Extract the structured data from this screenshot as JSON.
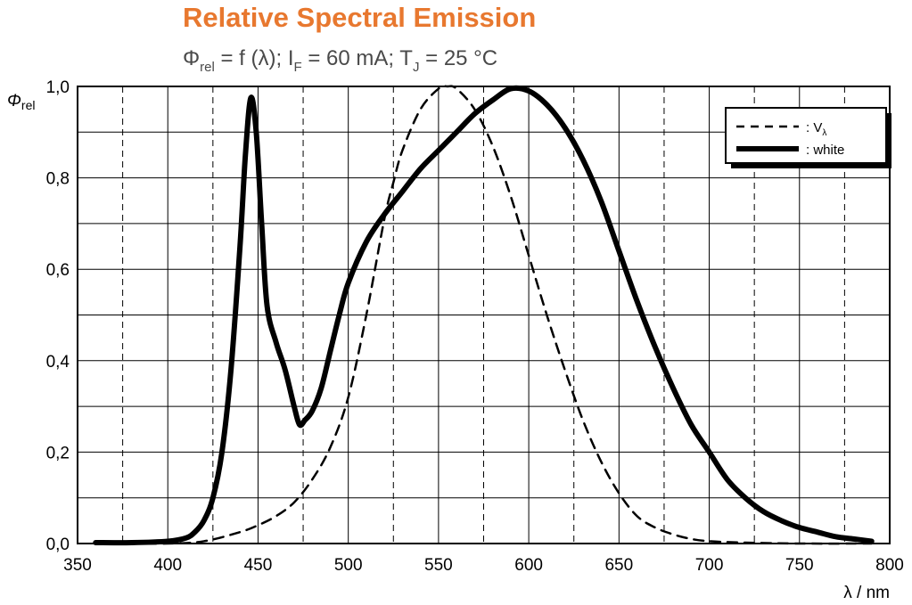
{
  "chart_data": {
    "type": "line",
    "title": "Relative Spectral Emission",
    "subtitle": {
      "phi": "Φ",
      "phi_sub": "rel",
      "mid": " = f (λ); I",
      "i_sub": "F",
      "mid2": " = 60 mA; T",
      "t_sub": "J",
      "end": " = 25 °C"
    },
    "ylabel": {
      "symbol": "Φ",
      "sub": "rel"
    },
    "xlabel": "λ / nm",
    "xlim": [
      350,
      800
    ],
    "ylim": [
      0,
      1.0
    ],
    "x_ticks": [
      "350",
      "400",
      "450",
      "500",
      "550",
      "600",
      "650",
      "700",
      "750",
      "800"
    ],
    "y_ticks": [
      "0,0",
      "0,2",
      "0,4",
      "0,6",
      "0,8",
      "1,0"
    ],
    "grid": true,
    "legend_position": "top-right",
    "colors": {
      "title": "#e8782f",
      "subtitle": "#4a4a4a",
      "lines": "#000000"
    },
    "series": [
      {
        "name": "V",
        "name_sub": "λ",
        "style": "dashed",
        "x": [
          360,
          400,
          420,
          440,
          450,
          460,
          470,
          480,
          490,
          500,
          510,
          520,
          525,
          530,
          540,
          550,
          555,
          560,
          570,
          580,
          590,
          600,
          610,
          620,
          630,
          640,
          650,
          660,
          670,
          680,
          690,
          700,
          720,
          750,
          790
        ],
        "y": [
          0,
          0,
          0.005,
          0.025,
          0.04,
          0.06,
          0.09,
          0.14,
          0.21,
          0.32,
          0.5,
          0.71,
          0.79,
          0.86,
          0.95,
          0.995,
          1.0,
          0.995,
          0.95,
          0.87,
          0.76,
          0.63,
          0.5,
          0.38,
          0.27,
          0.18,
          0.11,
          0.06,
          0.035,
          0.02,
          0.01,
          0.005,
          0.002,
          0.0,
          0.0
        ]
      },
      {
        "name": "white",
        "style": "solid",
        "x": [
          360,
          380,
          400,
          410,
          415,
          420,
          425,
          430,
          435,
          440,
          443,
          446,
          449,
          452,
          455,
          460,
          465,
          470,
          473,
          476,
          480,
          485,
          490,
          495,
          500,
          510,
          520,
          530,
          540,
          550,
          560,
          570,
          580,
          590,
          600,
          610,
          620,
          630,
          640,
          650,
          660,
          670,
          680,
          690,
          700,
          710,
          720,
          730,
          740,
          750,
          760,
          770,
          780,
          790
        ],
        "y": [
          0.002,
          0.002,
          0.005,
          0.012,
          0.025,
          0.05,
          0.1,
          0.2,
          0.38,
          0.65,
          0.85,
          0.975,
          0.9,
          0.7,
          0.52,
          0.44,
          0.38,
          0.3,
          0.26,
          0.27,
          0.29,
          0.34,
          0.42,
          0.5,
          0.57,
          0.66,
          0.72,
          0.77,
          0.82,
          0.86,
          0.9,
          0.94,
          0.97,
          0.995,
          0.99,
          0.96,
          0.91,
          0.84,
          0.75,
          0.64,
          0.53,
          0.43,
          0.34,
          0.26,
          0.2,
          0.14,
          0.1,
          0.07,
          0.05,
          0.035,
          0.025,
          0.015,
          0.01,
          0.005
        ]
      }
    ]
  }
}
